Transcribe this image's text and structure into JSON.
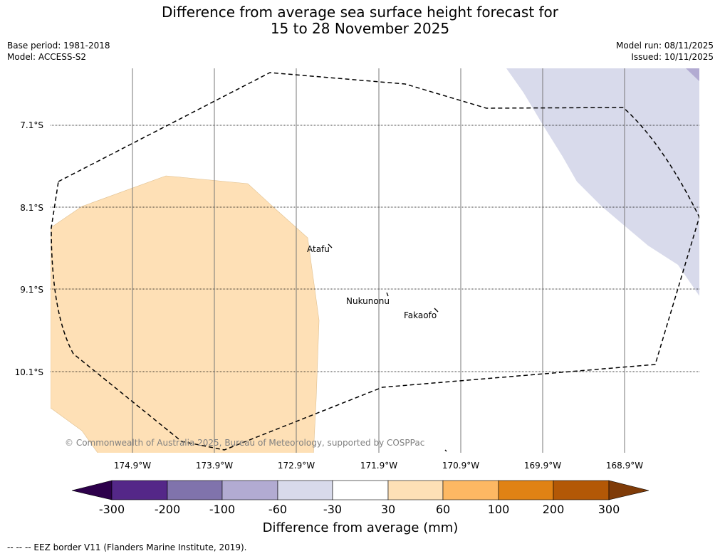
{
  "title": {
    "line1": "Difference from average sea surface height forecast for",
    "line2": "15 to 28 November 2025"
  },
  "meta_left": {
    "base_period": "Base period: 1981-2018",
    "model": "Model: ACCESS-S2"
  },
  "meta_right": {
    "model_run": "Model run: 08/11/2025",
    "issued": "Issued: 10/11/2025"
  },
  "map": {
    "lat_labels": [
      "7.1°S",
      "8.1°S",
      "9.1°S",
      "10.1°S"
    ],
    "lon_labels": [
      "174.9°W",
      "173.9°W",
      "172.9°W",
      "171.9°W",
      "170.9°W",
      "169.9°W",
      "168.9°W"
    ],
    "places": [
      "Atafu",
      "Nukunonu",
      "Fakaofo"
    ],
    "copyright": "© Commonwealth of Australia 2025, Bureau of Meteorology, supported by COSPPac"
  },
  "colorbar": {
    "label": "Difference from average (mm)",
    "ticks": [
      "-300",
      "-200",
      "-100",
      "-60",
      "-30",
      "30",
      "60",
      "100",
      "200",
      "300"
    ],
    "colors": [
      "#2d004b",
      "#542788",
      "#8073ac",
      "#b2abd2",
      "#d8daeb",
      "#ffffff",
      "#fee0b6",
      "#fdb863",
      "#e08214",
      "#b35806",
      "#7f3b08"
    ]
  },
  "footer": "--  --  -- EEZ border V11 (Flanders Marine Institute, 2019)."
}
